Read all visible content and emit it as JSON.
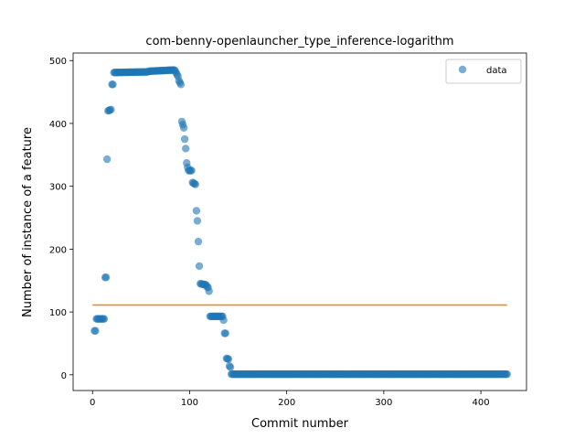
{
  "chart_data": {
    "type": "scatter",
    "title": "com-benny-openlauncher_type_inference-logarithm",
    "xlabel": "Commit number",
    "ylabel": "Number of instance of a feature",
    "xlim": [
      -20,
      447
    ],
    "ylim": [
      -25,
      512
    ],
    "xticks": [
      0,
      100,
      200,
      300,
      400
    ],
    "yticks": [
      0,
      100,
      200,
      300,
      400,
      500
    ],
    "legend": {
      "position": "top-right",
      "label": "data"
    },
    "colors": {
      "data": "#1f77b4",
      "fit": "#ff7f0e"
    },
    "series": [
      {
        "name": "data",
        "kind": "scatter",
        "runs": [
          {
            "x0": 2,
            "x1": 3,
            "y0": 70,
            "y1": 70
          },
          {
            "x0": 4,
            "x1": 12,
            "y0": 89,
            "y1": 89
          },
          {
            "x0": 13,
            "x1": 14,
            "y0": 155,
            "y1": 155
          },
          {
            "x0": 15,
            "x1": 15,
            "y0": 343,
            "y1": 343
          },
          {
            "x0": 16,
            "x1": 19,
            "y0": 420,
            "y1": 422
          },
          {
            "x0": 20,
            "x1": 21,
            "y0": 462,
            "y1": 462
          },
          {
            "x0": 22,
            "x1": 57,
            "y0": 481,
            "y1": 482
          },
          {
            "x0": 58,
            "x1": 84,
            "y0": 483,
            "y1": 485
          },
          {
            "x0": 85,
            "x1": 88,
            "y0": 484,
            "y1": 475
          },
          {
            "x0": 89,
            "x1": 91,
            "y0": 468,
            "y1": 462
          },
          {
            "x0": 92,
            "x1": 94,
            "y0": 403,
            "y1": 393
          },
          {
            "x0": 95,
            "x1": 96,
            "y0": 375,
            "y1": 360
          },
          {
            "x0": 97,
            "x1": 98,
            "y0": 337,
            "y1": 330
          },
          {
            "x0": 99,
            "x1": 102,
            "y0": 325,
            "y1": 325
          },
          {
            "x0": 103,
            "x1": 106,
            "y0": 306,
            "y1": 303
          },
          {
            "x0": 107,
            "x1": 107,
            "y0": 261,
            "y1": 261
          },
          {
            "x0": 108,
            "x1": 108,
            "y0": 245,
            "y1": 245
          },
          {
            "x0": 109,
            "x1": 109,
            "y0": 212,
            "y1": 212
          },
          {
            "x0": 110,
            "x1": 110,
            "y0": 173,
            "y1": 173
          },
          {
            "x0": 111,
            "x1": 117,
            "y0": 145,
            "y1": 143
          },
          {
            "x0": 118,
            "x1": 119,
            "y0": 140,
            "y1": 139
          },
          {
            "x0": 120,
            "x1": 120,
            "y0": 133,
            "y1": 133
          },
          {
            "x0": 121,
            "x1": 134,
            "y0": 93,
            "y1": 93
          },
          {
            "x0": 135,
            "x1": 135,
            "y0": 87,
            "y1": 87
          },
          {
            "x0": 136,
            "x1": 137,
            "y0": 66,
            "y1": 66
          },
          {
            "x0": 138,
            "x1": 140,
            "y0": 26,
            "y1": 25
          },
          {
            "x0": 141,
            "x1": 142,
            "y0": 14,
            "y1": 12
          },
          {
            "x0": 143,
            "x1": 427,
            "y0": 1,
            "y1": 1
          }
        ]
      },
      {
        "name": "fit",
        "kind": "line",
        "x": [
          0,
          427
        ],
        "y": [
          111,
          111
        ]
      }
    ]
  }
}
